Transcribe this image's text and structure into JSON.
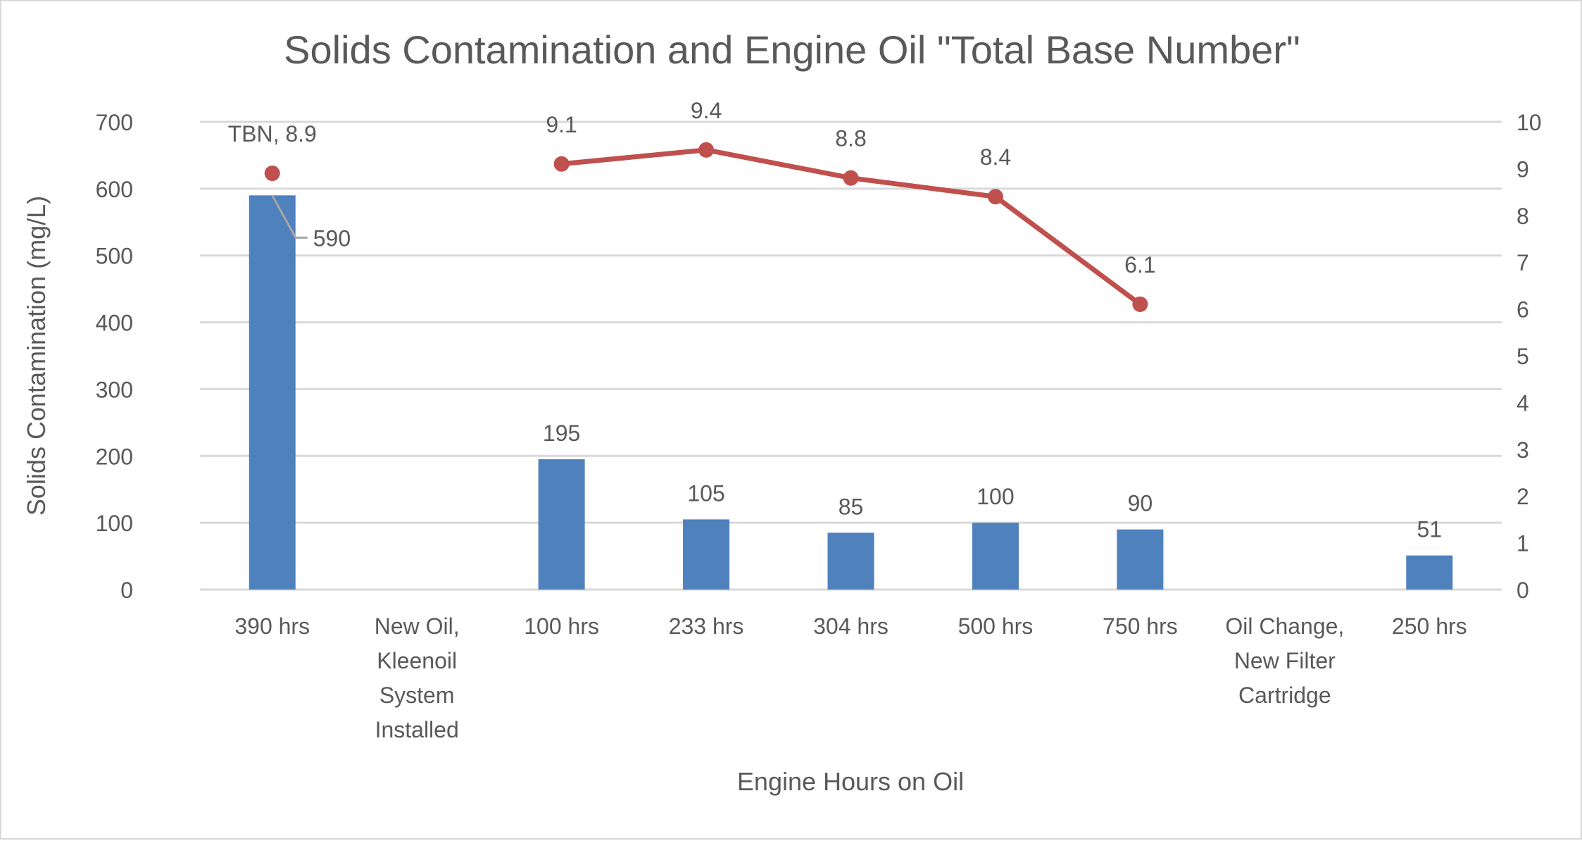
{
  "chart_data": {
    "type": "bar+line",
    "title": "Solids Contamination and Engine Oil \"Total Base Number\"",
    "xlabel": "Engine Hours on Oil",
    "ylabel": "Solids Contamination (mg/L)",
    "ylim": [
      0,
      700
    ],
    "y_ticks": [
      "0",
      "100",
      "200",
      "300",
      "400",
      "500",
      "600",
      "700"
    ],
    "y2lim": [
      0,
      10
    ],
    "y2_ticks": [
      "0",
      "1",
      "2",
      "3",
      "4",
      "5",
      "6",
      "7",
      "8",
      "9",
      "10"
    ],
    "grid": true,
    "categories": [
      [
        "390 hrs"
      ],
      [
        "New Oil,",
        "Kleenoil",
        "System",
        "Installed"
      ],
      [
        "100 hrs"
      ],
      [
        "233 hrs"
      ],
      [
        "304 hrs"
      ],
      [
        "500 hrs"
      ],
      [
        "750 hrs"
      ],
      [
        "Oil Change,",
        "New Filter",
        "Cartridge"
      ],
      [
        "250 hrs"
      ]
    ],
    "series": [
      {
        "name": "Solids Contamination",
        "type": "bar",
        "axis": "left",
        "color": "#4f81bd",
        "values": [
          590,
          null,
          195,
          105,
          85,
          100,
          90,
          null,
          51
        ],
        "labels": [
          "590",
          "",
          "195",
          "105",
          "85",
          "100",
          "90",
          "",
          "51"
        ]
      },
      {
        "name": "TBN",
        "type": "line",
        "axis": "right",
        "color": "#c0504d",
        "values": [
          8.9,
          null,
          9.1,
          9.4,
          8.8,
          8.4,
          6.1,
          null,
          null
        ],
        "labels": [
          "TBN, 8.9",
          "",
          "9.1",
          "9.4",
          "8.8",
          "8.4",
          "6.1",
          "",
          ""
        ]
      }
    ]
  }
}
